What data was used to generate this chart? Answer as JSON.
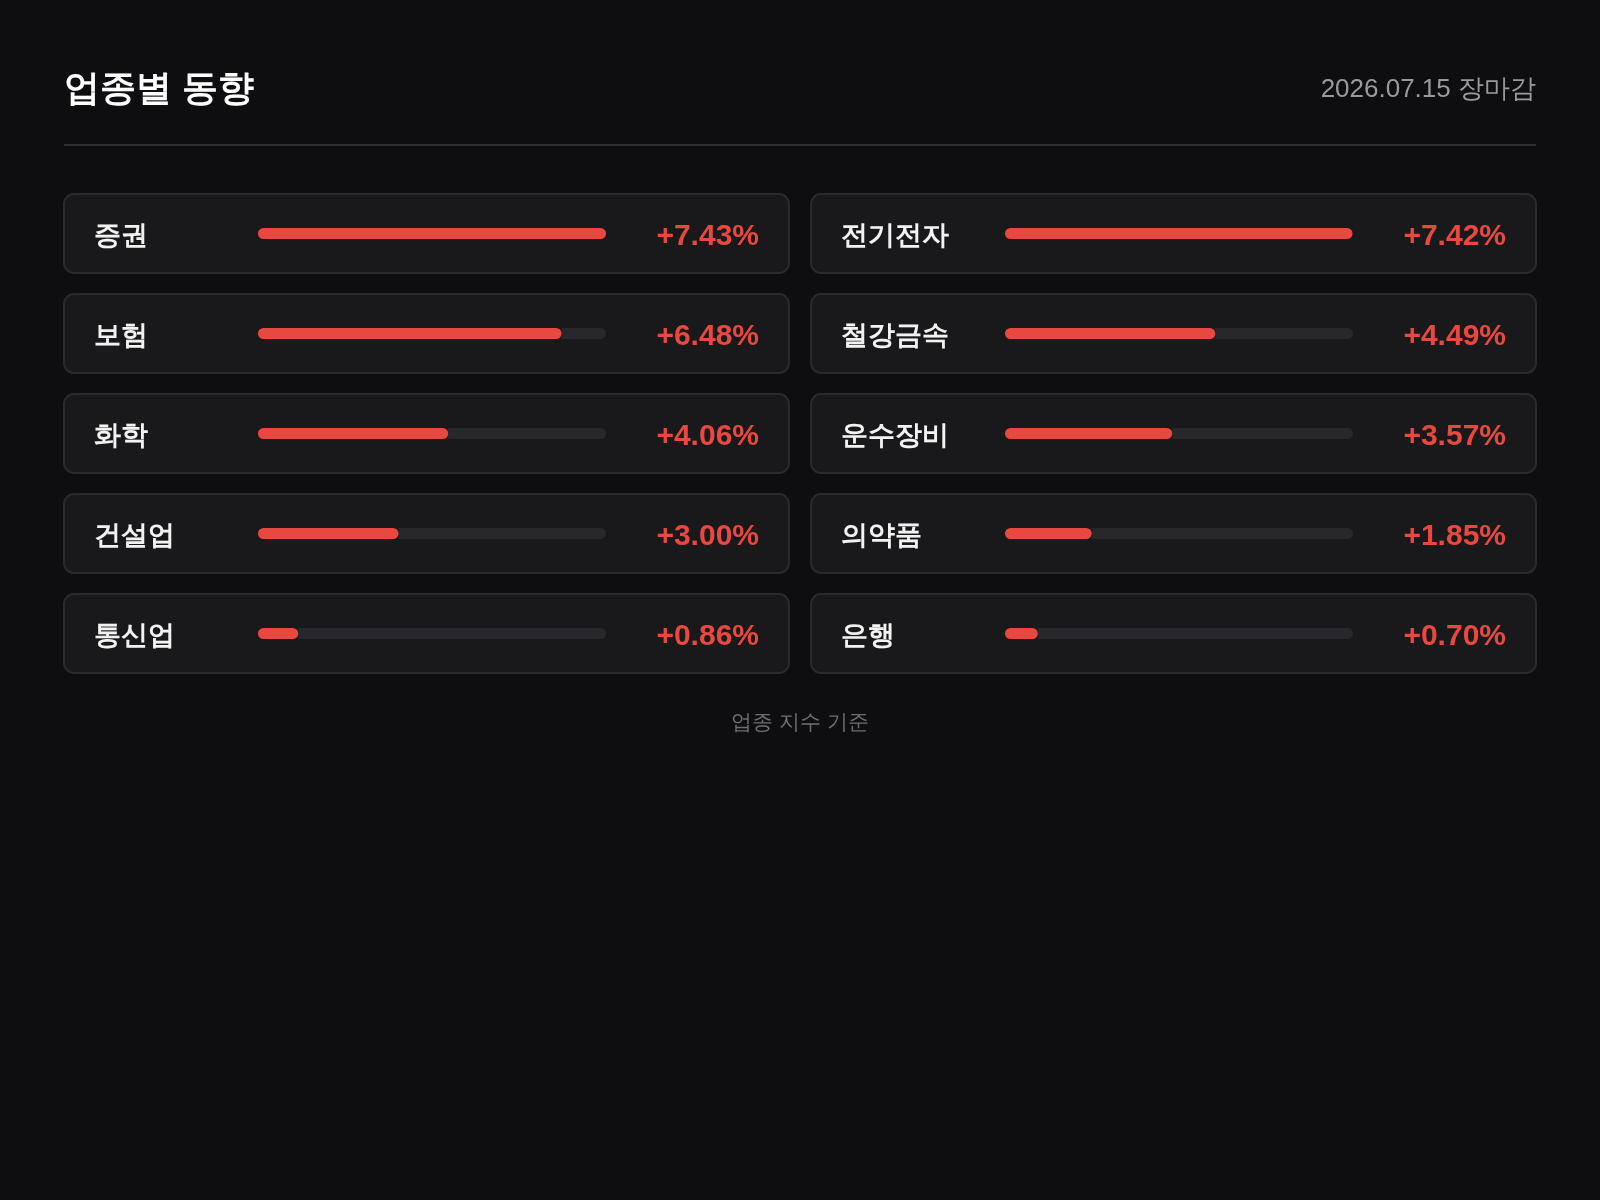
{
  "chart_data": [
    {
      "type": "bar",
      "orientation": "horizontal",
      "title": "업종별 동향",
      "color": "#e8483f",
      "annotations": [
        "업종 지수 기준"
      ],
      "categories": [
        "증권",
        "보험",
        "화학",
        "건설업",
        "통신업"
      ],
      "values": [
        7.43,
        6.48,
        4.06,
        3.0,
        0.86
      ],
      "value_labels": [
        "+7.43%",
        "+6.48%",
        "+4.06%",
        "+3.00%",
        "+0.86%"
      ]
    },
    {
      "type": "bar",
      "orientation": "horizontal",
      "subtitle": "2026.07.15 장마감",
      "color": "#e8483f",
      "categories": [
        "전기전자",
        "철강금속",
        "운수장비",
        "의약품",
        "은행"
      ],
      "values": [
        7.42,
        4.49,
        3.57,
        1.85,
        0.7
      ],
      "value_labels": [
        "+7.42%",
        "+4.49%",
        "+3.57%",
        "+1.85%",
        "+0.70%"
      ]
    }
  ]
}
